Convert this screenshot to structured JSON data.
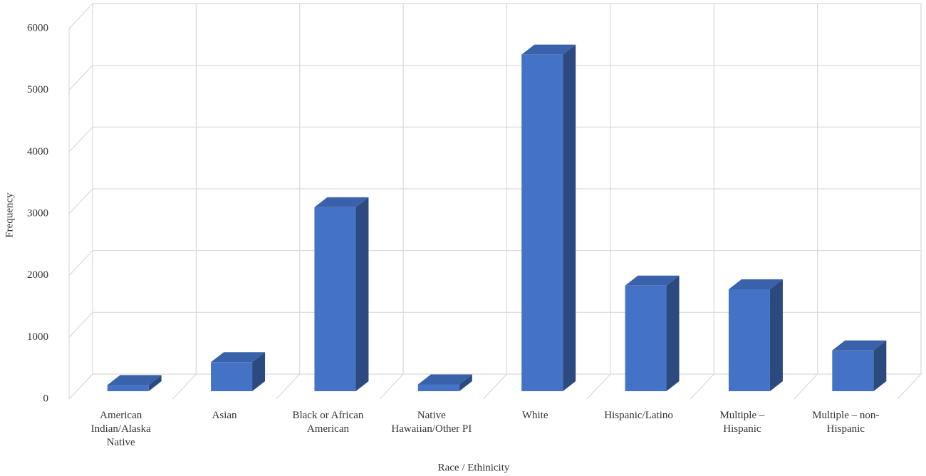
{
  "chart_data": {
    "type": "bar3d",
    "x_label": "Race / Ethinicity",
    "y_label": "Frequency",
    "categories": [
      "American Indian/Alaska Native",
      "Asian",
      "Black or African American",
      "Native Hawaiian/Other PI",
      "White",
      "Hispanic/Latino",
      "Multiple – Hispanic",
      "Multiple – non-Hispanic"
    ],
    "values": [
      100,
      470,
      2980,
      110,
      5450,
      1710,
      1650,
      660
    ],
    "color": "#4472c4",
    "ylim": [
      0,
      6000
    ],
    "yticks": [
      0,
      1000,
      2000,
      3000,
      4000,
      5000,
      6000
    ],
    "grid": true
  }
}
